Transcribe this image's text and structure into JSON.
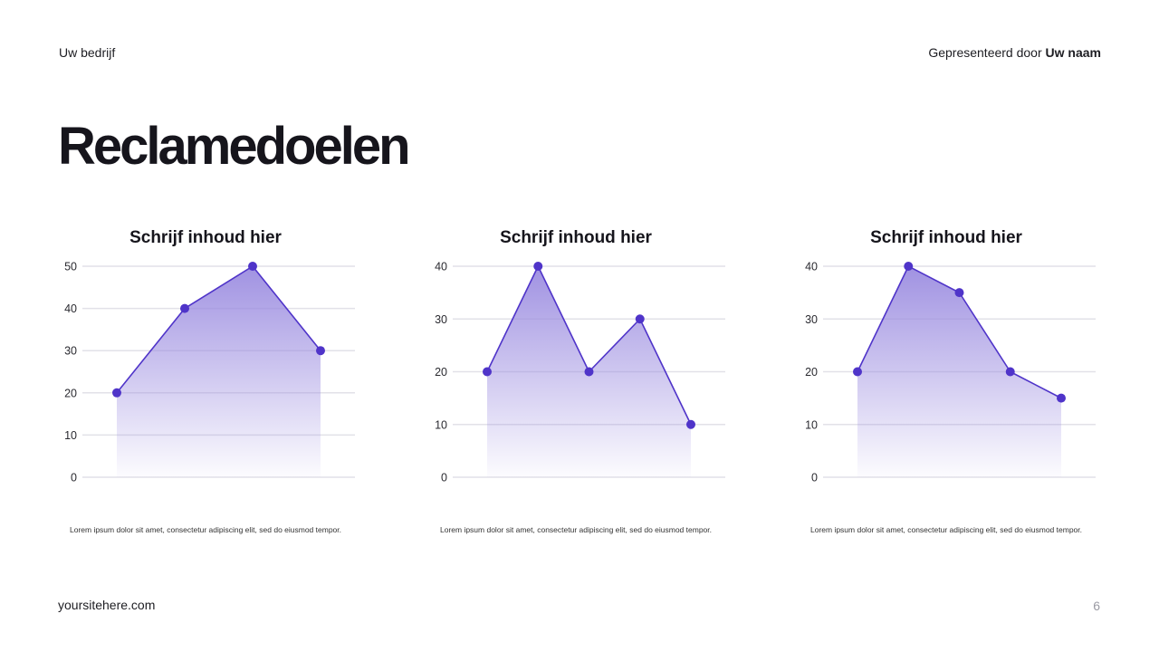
{
  "header": {
    "company": "Uw bedrijf",
    "presented_prefix": "Gepresenteerd door",
    "presenter_name": "Uw naam"
  },
  "page_title": "Reclamedoelen",
  "footer": {
    "site": "yoursitehere.com",
    "page_number": "6"
  },
  "colors": {
    "accent": "#4f34c9",
    "fill_top": "#9b8ce0",
    "grid": "#e2e1e8"
  },
  "chart_data": [
    {
      "type": "area",
      "title": "Schrijf inhoud hier",
      "x": [
        1,
        2,
        3,
        4
      ],
      "values": [
        20,
        40,
        50,
        30
      ],
      "yticks": [
        0,
        10,
        20,
        30,
        40,
        50
      ],
      "ylim": [
        0,
        50
      ],
      "xlabel": "",
      "ylabel": "",
      "grid": true,
      "caption": "Lorem ipsum dolor sit amet, consectetur adipiscing elit, sed do eiusmod tempor."
    },
    {
      "type": "area",
      "title": "Schrijf inhoud hier",
      "x": [
        1,
        2,
        3,
        4,
        5
      ],
      "values": [
        20,
        40,
        20,
        30,
        10
      ],
      "yticks": [
        0,
        10,
        20,
        30,
        40
      ],
      "ylim": [
        0,
        40
      ],
      "xlabel": "",
      "ylabel": "",
      "grid": true,
      "caption": "Lorem ipsum dolor sit amet, consectetur adipiscing elit, sed do eiusmod tempor."
    },
    {
      "type": "area",
      "title": "Schrijf inhoud hier",
      "x": [
        1,
        2,
        3,
        4,
        5
      ],
      "values": [
        20,
        40,
        35,
        20,
        15
      ],
      "yticks": [
        0,
        10,
        20,
        30,
        40
      ],
      "ylim": [
        0,
        40
      ],
      "xlabel": "",
      "ylabel": "",
      "grid": true,
      "caption": "Lorem ipsum dolor sit amet, consectetur adipiscing elit, sed do eiusmod tempor."
    }
  ]
}
